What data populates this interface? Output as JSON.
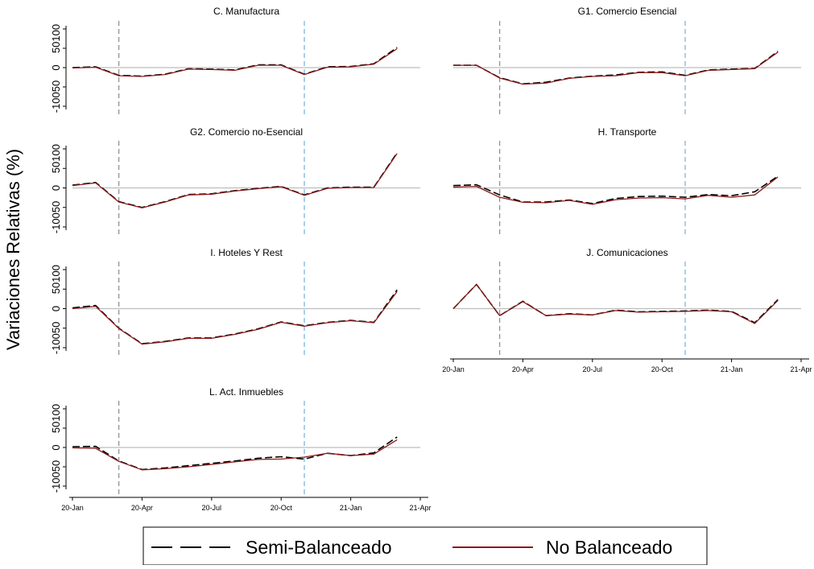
{
  "ylabel": "Variaciones Relativas (%)",
  "legend": {
    "items": [
      {
        "label": "Semi-Balanceado",
        "style": "dashed",
        "color": "#000000"
      },
      {
        "label": "No Balanceado",
        "style": "solid",
        "color": "#8b1a1a"
      }
    ]
  },
  "colors": {
    "semi": "#000000",
    "no_bal": "#8b1a1a",
    "zero_line": "#bdbdbd",
    "vline_1": "#8c8c8c",
    "vline_2": "#6fb0de"
  },
  "chart_data": [
    {
      "type": "line",
      "title": "C. Manufactura",
      "x_ticks": [
        "20-Jan",
        "20-Apr",
        "20-Jul",
        "20-Oct",
        "21-Jan",
        "21-Apr"
      ],
      "show_x_axis": false,
      "y_ticks": [
        "-100",
        "-50",
        "0",
        "50",
        "100"
      ],
      "y_tick_display": [
        "-10050",
        "0",
        "50100"
      ],
      "ylim": [
        -100,
        100
      ],
      "vlines": [
        "20-Mar",
        "20-Nov"
      ],
      "series": [
        {
          "name": "Semi-Balanceado",
          "values": [
            0,
            2,
            -20,
            -22,
            -17,
            -3,
            -4,
            -6,
            7,
            7,
            -17,
            2,
            3,
            10,
            52
          ]
        },
        {
          "name": "No Balanceado",
          "values": [
            -1,
            1,
            -21,
            -23,
            -18,
            -4,
            -5,
            -7,
            6,
            6,
            -18,
            1,
            2,
            9,
            49
          ]
        }
      ]
    },
    {
      "type": "line",
      "title": "G1. Comercio Esencial",
      "x_ticks": [
        "20-Jan",
        "20-Apr",
        "20-Jul",
        "20-Oct",
        "21-Jan",
        "21-Apr"
      ],
      "show_x_axis": false,
      "ylim": [
        -100,
        100
      ],
      "vlines": [
        "20-Mar",
        "20-Nov"
      ],
      "series": [
        {
          "name": "Semi-Balanceado",
          "values": [
            6,
            6,
            -26,
            -42,
            -38,
            -27,
            -22,
            -19,
            -12,
            -11,
            -20,
            -6,
            -4,
            -2,
            42
          ]
        },
        {
          "name": "No Balanceado",
          "values": [
            6,
            6,
            -27,
            -43,
            -40,
            -28,
            -23,
            -21,
            -13,
            -13,
            -21,
            -7,
            -5,
            -3,
            40
          ]
        }
      ]
    },
    {
      "type": "line",
      "title": "G2. Comercio no-Esencial",
      "x_ticks": [
        "20-Jan",
        "20-Apr",
        "20-Jul",
        "20-Oct",
        "21-Jan",
        "21-Apr"
      ],
      "show_x_axis": false,
      "ylim": [
        -100,
        100
      ],
      "vlines": [
        "20-Mar",
        "20-Nov"
      ],
      "series": [
        {
          "name": "Semi-Balanceado",
          "values": [
            7,
            14,
            -35,
            -50,
            -35,
            -17,
            -15,
            -7,
            -1,
            4,
            -18,
            0,
            2,
            2,
            90
          ]
        },
        {
          "name": "No Balanceado",
          "values": [
            6,
            13,
            -36,
            -51,
            -36,
            -18,
            -16,
            -8,
            -2,
            3,
            -19,
            -1,
            1,
            1,
            88
          ]
        }
      ]
    },
    {
      "type": "line",
      "title": "H. Transporte",
      "x_ticks": [
        "20-Jan",
        "20-Apr",
        "20-Jul",
        "20-Oct",
        "21-Jan",
        "21-Apr"
      ],
      "show_x_axis": false,
      "ylim": [
        -100,
        100
      ],
      "vlines": [
        "20-Mar",
        "20-Nov"
      ],
      "series": [
        {
          "name": "Semi-Balanceado",
          "values": [
            6,
            8,
            -18,
            -36,
            -36,
            -31,
            -40,
            -27,
            -22,
            -21,
            -24,
            -17,
            -20,
            -10,
            30
          ]
        },
        {
          "name": "No Balanceado",
          "values": [
            2,
            4,
            -24,
            -37,
            -38,
            -32,
            -42,
            -30,
            -26,
            -25,
            -28,
            -19,
            -24,
            -18,
            28
          ]
        }
      ]
    },
    {
      "type": "line",
      "title": "I. Hoteles Y Rest",
      "x_ticks": [
        "20-Jan",
        "20-Apr",
        "20-Jul",
        "20-Oct",
        "21-Jan",
        "21-Apr"
      ],
      "show_x_axis": false,
      "ylim": [
        -100,
        100
      ],
      "vlines": [
        "20-Mar",
        "20-Nov"
      ],
      "series": [
        {
          "name": "Semi-Balanceado",
          "values": [
            2,
            8,
            -50,
            -90,
            -84,
            -75,
            -75,
            -65,
            -52,
            -34,
            -44,
            -35,
            -30,
            -35,
            48
          ]
        },
        {
          "name": "No Balanceado",
          "values": [
            0,
            6,
            -51,
            -91,
            -85,
            -76,
            -76,
            -66,
            -53,
            -35,
            -45,
            -36,
            -31,
            -36,
            44
          ]
        }
      ]
    },
    {
      "type": "line",
      "title": "J. Comunicaciones",
      "x_ticks": [
        "20-Jan",
        "20-Apr",
        "20-Jul",
        "20-Oct",
        "21-Jan",
        "21-Apr"
      ],
      "show_x_axis": true,
      "ylim": [
        -100,
        100
      ],
      "vlines": [
        "20-Mar",
        "20-Nov"
      ],
      "series": [
        {
          "name": "Semi-Balanceado",
          "values": [
            0,
            62,
            -18,
            19,
            -18,
            -13,
            -16,
            -4,
            -8,
            -7,
            -6,
            -4,
            -7,
            -36,
            23
          ]
        },
        {
          "name": "No Balanceado",
          "values": [
            0,
            62,
            -18,
            18,
            -18,
            -14,
            -16,
            -5,
            -9,
            -8,
            -7,
            -5,
            -8,
            -38,
            21
          ]
        }
      ]
    },
    {
      "type": "line",
      "title": "L. Act. Inmuebles",
      "x_ticks": [
        "20-Jan",
        "20-Apr",
        "20-Jul",
        "20-Oct",
        "21-Jan",
        "21-Apr"
      ],
      "show_x_axis": true,
      "ylim": [
        -100,
        100
      ],
      "vlines": [
        "20-Mar",
        "20-Nov"
      ],
      "series": [
        {
          "name": "Semi-Balanceado",
          "values": [
            2,
            3,
            -35,
            -57,
            -53,
            -47,
            -41,
            -35,
            -28,
            -24,
            -30,
            -15,
            -21,
            -14,
            27
          ]
        },
        {
          "name": "No Balanceado",
          "values": [
            -1,
            -2,
            -36,
            -58,
            -55,
            -50,
            -44,
            -37,
            -31,
            -30,
            -25,
            -15,
            -21,
            -17,
            20
          ]
        }
      ]
    }
  ]
}
